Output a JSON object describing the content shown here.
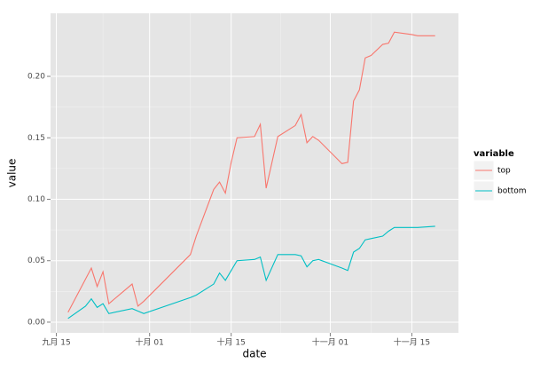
{
  "chart_data": {
    "type": "line",
    "x_label": "date",
    "y_label": "value",
    "x": [
      "09-17",
      "09-20",
      "09-21",
      "09-22",
      "09-23",
      "09-24",
      "09-28",
      "09-29",
      "09-30",
      "10-08",
      "10-09",
      "10-12",
      "10-13",
      "10-14",
      "10-15",
      "10-16",
      "10-19",
      "10-20",
      "10-21",
      "10-23",
      "10-26",
      "10-27",
      "10-28",
      "10-29",
      "10-30",
      "11-03",
      "11-04",
      "11-05",
      "11-06",
      "11-07",
      "11-08",
      "11-10",
      "11-11",
      "11-12",
      "11-15",
      "11-16",
      "11-19"
    ],
    "series": [
      {
        "name": "top",
        "color": "#F8766D",
        "values": [
          0.008,
          0.035,
          0.044,
          0.029,
          0.041,
          0.015,
          0.031,
          0.013,
          0.017,
          0.055,
          0.07,
          0.108,
          0.114,
          0.105,
          0.13,
          0.15,
          0.151,
          0.161,
          0.109,
          0.151,
          0.16,
          0.169,
          0.146,
          0.151,
          0.148,
          0.129,
          0.13,
          0.18,
          0.189,
          0.215,
          0.217,
          0.226,
          0.227,
          0.236,
          0.234,
          0.233,
          0.233
        ]
      },
      {
        "name": "bottom",
        "color": "#00BFC4",
        "values": [
          0.003,
          0.013,
          0.019,
          0.012,
          0.015,
          0.007,
          0.011,
          0.009,
          0.007,
          0.02,
          0.022,
          0.031,
          0.04,
          0.034,
          0.042,
          0.05,
          0.051,
          0.053,
          0.034,
          0.055,
          0.055,
          0.054,
          0.045,
          0.05,
          0.051,
          0.044,
          0.042,
          0.057,
          0.06,
          0.067,
          0.068,
          0.07,
          0.074,
          0.077,
          0.077,
          0.077,
          0.078
        ]
      }
    ],
    "xlim": [
      "09-14",
      "11-23"
    ],
    "xticks": [
      {
        "value": "09-15",
        "label": "九月 15"
      },
      {
        "value": "10-01",
        "label": "十月 01"
      },
      {
        "value": "10-15",
        "label": "十月 15"
      },
      {
        "value": "11-01",
        "label": "十一月 01"
      },
      {
        "value": "11-15",
        "label": "十一月 15"
      }
    ],
    "ylim": [
      -0.0087,
      0.2513
    ],
    "yticks": [
      {
        "value": 0,
        "label": "0.00"
      },
      {
        "value": 0.05,
        "label": "0.05"
      },
      {
        "value": 0.1,
        "label": "0.10"
      },
      {
        "value": 0.15,
        "label": "0.15"
      },
      {
        "value": 0.2,
        "label": "0.20"
      }
    ],
    "grid": true,
    "legend_title": "variable",
    "legend_position": "right"
  }
}
